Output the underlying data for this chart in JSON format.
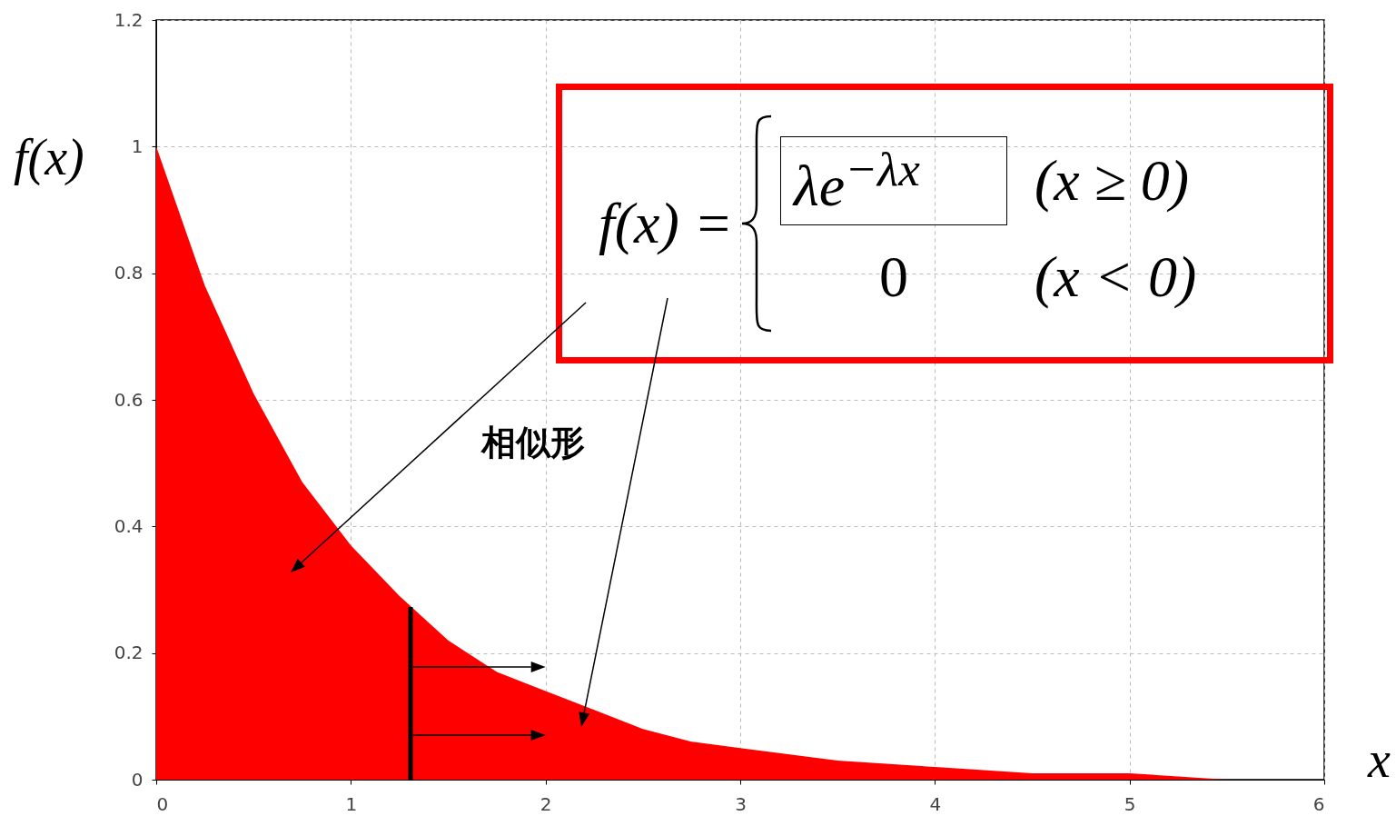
{
  "chart_data": {
    "type": "area",
    "xlabel": "x",
    "ylabel": "f(x)",
    "x": [
      0,
      0.25,
      0.5,
      0.75,
      1,
      1.25,
      1.5,
      1.75,
      2,
      2.25,
      2.5,
      2.75,
      3,
      3.5,
      4,
      4.5,
      5,
      5.5,
      6
    ],
    "series": [
      {
        "color": "#ff0000",
        "values": [
          1.0,
          0.78,
          0.61,
          0.47,
          0.37,
          0.29,
          0.22,
          0.17,
          0.14,
          0.11,
          0.08,
          0.06,
          0.05,
          0.03,
          0.02,
          0.01,
          0.01,
          0.0,
          0.0
        ]
      }
    ],
    "xlim": [
      0,
      6
    ],
    "xticks": [
      0,
      1,
      2,
      3,
      4,
      5,
      6
    ],
    "ylim": [
      0,
      1.2
    ],
    "yticks": [
      0,
      0.2,
      0.4,
      0.6,
      0.8,
      1,
      1.2
    ],
    "grid": true,
    "annotations": [
      "f(x) =",
      "λe$^{−λx}$",
      "(x ≥ 0)",
      "0",
      "(x < 0)",
      "相似形"
    ]
  }
}
